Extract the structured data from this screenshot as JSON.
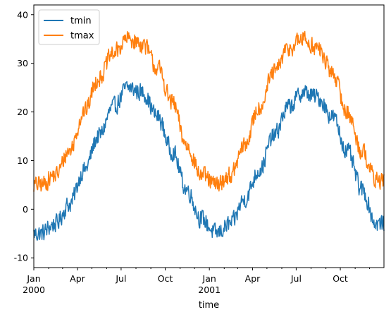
{
  "chart_data": {
    "type": "line",
    "title": "",
    "xlabel": "time",
    "ylabel": "",
    "x_start": "2000-01-01",
    "x_end": "2001-12-31",
    "frequency": "daily",
    "ylim": [
      -12,
      42
    ],
    "yticks": [
      -10,
      0,
      10,
      20,
      30,
      40
    ],
    "xticks_major": [
      {
        "date": "2000-01-01",
        "label": "Jan",
        "sublabel": "2000"
      },
      {
        "date": "2000-04-01",
        "label": "Apr",
        "sublabel": ""
      },
      {
        "date": "2000-07-01",
        "label": "Jul",
        "sublabel": ""
      },
      {
        "date": "2000-10-01",
        "label": "Oct",
        "sublabel": ""
      },
      {
        "date": "2001-01-01",
        "label": "Jan",
        "sublabel": "2001"
      },
      {
        "date": "2001-04-01",
        "label": "Apr",
        "sublabel": ""
      },
      {
        "date": "2001-07-01",
        "label": "Jul",
        "sublabel": ""
      },
      {
        "date": "2001-10-01",
        "label": "Oct",
        "sublabel": ""
      }
    ],
    "xticks_minor": [
      "2000-02-01",
      "2000-03-01",
      "2000-05-01",
      "2000-06-01",
      "2000-08-01",
      "2000-09-01",
      "2000-11-01",
      "2000-12-01",
      "2001-02-01",
      "2001-03-01",
      "2001-05-01",
      "2001-06-01",
      "2001-08-01",
      "2001-09-01",
      "2001-11-01",
      "2001-12-01"
    ],
    "grid": false,
    "legend_position": "top-left",
    "series": [
      {
        "name": "tmin",
        "color": "#1f77b4",
        "monthly_mean": [
          {
            "date": "2000-01-15",
            "value": -5
          },
          {
            "date": "2000-02-15",
            "value": -3
          },
          {
            "date": "2000-03-15",
            "value": 1
          },
          {
            "date": "2000-04-15",
            "value": 8
          },
          {
            "date": "2000-05-15",
            "value": 15
          },
          {
            "date": "2000-06-15",
            "value": 21
          },
          {
            "date": "2000-07-15",
            "value": 25
          },
          {
            "date": "2000-08-15",
            "value": 24
          },
          {
            "date": "2000-09-15",
            "value": 19
          },
          {
            "date": "2000-10-15",
            "value": 12
          },
          {
            "date": "2000-11-15",
            "value": 4
          },
          {
            "date": "2000-12-15",
            "value": -2
          },
          {
            "date": "2001-01-15",
            "value": -5
          },
          {
            "date": "2001-02-15",
            "value": -3
          },
          {
            "date": "2001-03-15",
            "value": 2
          },
          {
            "date": "2001-04-15",
            "value": 8
          },
          {
            "date": "2001-05-15",
            "value": 15
          },
          {
            "date": "2001-06-15",
            "value": 21
          },
          {
            "date": "2001-07-15",
            "value": 24
          },
          {
            "date": "2001-08-15",
            "value": 23
          },
          {
            "date": "2001-09-15",
            "value": 19
          },
          {
            "date": "2001-10-15",
            "value": 12
          },
          {
            "date": "2001-11-15",
            "value": 4
          },
          {
            "date": "2001-12-15",
            "value": -3
          }
        ],
        "min": -10,
        "max": 29
      },
      {
        "name": "tmax",
        "color": "#ff7f0e",
        "monthly_mean": [
          {
            "date": "2000-01-15",
            "value": 5
          },
          {
            "date": "2000-02-15",
            "value": 7
          },
          {
            "date": "2000-03-15",
            "value": 12
          },
          {
            "date": "2000-04-15",
            "value": 20
          },
          {
            "date": "2000-05-15",
            "value": 27
          },
          {
            "date": "2000-06-15",
            "value": 32
          },
          {
            "date": "2000-07-15",
            "value": 35
          },
          {
            "date": "2000-08-15",
            "value": 34
          },
          {
            "date": "2000-09-15",
            "value": 29
          },
          {
            "date": "2000-10-15",
            "value": 22
          },
          {
            "date": "2000-11-15",
            "value": 13
          },
          {
            "date": "2000-12-15",
            "value": 7
          },
          {
            "date": "2001-01-15",
            "value": 5
          },
          {
            "date": "2001-02-15",
            "value": 7
          },
          {
            "date": "2001-03-15",
            "value": 13
          },
          {
            "date": "2001-04-15",
            "value": 21
          },
          {
            "date": "2001-05-15",
            "value": 28
          },
          {
            "date": "2001-06-15",
            "value": 33
          },
          {
            "date": "2001-07-15",
            "value": 35
          },
          {
            "date": "2001-08-15",
            "value": 33
          },
          {
            "date": "2001-09-15",
            "value": 28
          },
          {
            "date": "2001-10-15",
            "value": 20
          },
          {
            "date": "2001-11-15",
            "value": 12
          },
          {
            "date": "2001-12-15",
            "value": 6
          }
        ],
        "min": 0,
        "max": 39.5
      }
    ]
  }
}
